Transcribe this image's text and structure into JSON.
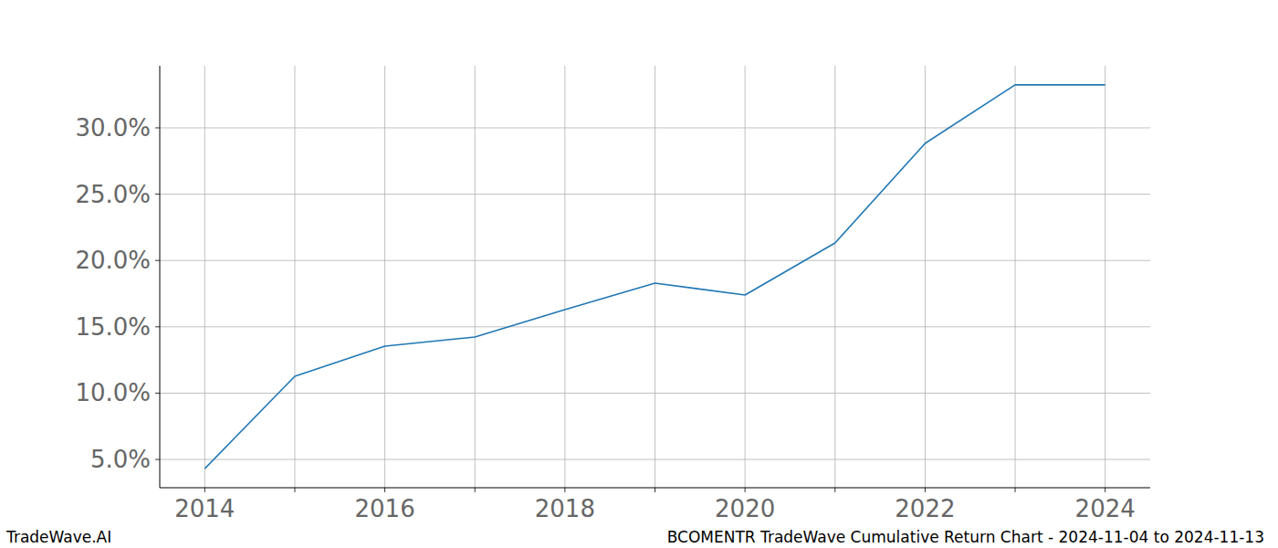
{
  "chart_data": {
    "type": "line",
    "title": "BCOMENTR TradeWave Cumulative Return Chart - 2024-11-04 to 2024-11-13",
    "source": "TradeWave.AI",
    "x": [
      2014,
      2015,
      2016,
      2017,
      2018,
      2019,
      2020,
      2021,
      2022,
      2023,
      2024
    ],
    "series": [
      {
        "name": "BCOMENTR",
        "color": "#1f77b4",
        "values": [
          4.31,
          11.27,
          13.54,
          14.23,
          16.3,
          18.29,
          17.4,
          21.32,
          28.83,
          33.24,
          33.24
        ]
      }
    ],
    "xlim": [
      2013.5,
      2024.5
    ],
    "xticks": [
      2014,
      {
        "value": 2015,
        "label": null
      },
      2016,
      {
        "value": 2017,
        "label": null
      },
      2018,
      {
        "value": 2019,
        "label": null
      },
      2020,
      {
        "value": 2021,
        "label": null
      },
      2022,
      {
        "value": 2023,
        "label": null
      },
      2024
    ],
    "ylim": [
      2.87,
      34.68
    ],
    "yticks": [
      {
        "value": 5,
        "label": "5.0%"
      },
      {
        "value": 10,
        "label": "10.0%"
      },
      {
        "value": 15,
        "label": "15.0%"
      },
      {
        "value": 20,
        "label": "20.0%"
      },
      {
        "value": 25,
        "label": "25.0%"
      },
      {
        "value": 30,
        "label": "30.0%"
      }
    ],
    "grid": true
  }
}
